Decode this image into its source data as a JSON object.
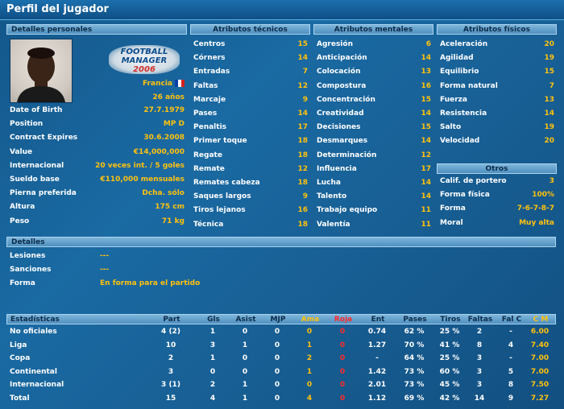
{
  "title": "Perfil del jugador",
  "personal": {
    "header": "Detalles personales",
    "logo_line1": "FOOTBALL",
    "logo_line2": "MANAGER",
    "logo_year": "2006",
    "nationality": "Francia",
    "age": "26 años",
    "rows": [
      {
        "label": "Date of Birth",
        "value": "27.7.1979"
      },
      {
        "label": "Position",
        "value": "MP D"
      },
      {
        "label": "Contract Expires",
        "value": "30.6.2008"
      },
      {
        "label": "Value",
        "value": "€14,000,000"
      },
      {
        "label": "Internacional",
        "value": "20 veces int. / 5 goles"
      },
      {
        "label": "Sueldo base",
        "value": "€110,000 mensuales"
      },
      {
        "label": "Pierna preferida",
        "value": "Dcha. sólo"
      },
      {
        "label": "Altura",
        "value": "175 cm"
      },
      {
        "label": "Peso",
        "value": "71 kg"
      }
    ]
  },
  "tecnicos": {
    "header": "Atributos técnicos",
    "rows": [
      {
        "label": "Centros",
        "value": "15"
      },
      {
        "label": "Córners",
        "value": "14"
      },
      {
        "label": "Entradas",
        "value": "7"
      },
      {
        "label": "Faltas",
        "value": "12"
      },
      {
        "label": "Marcaje",
        "value": "9"
      },
      {
        "label": "Pases",
        "value": "14"
      },
      {
        "label": "Penaltis",
        "value": "17"
      },
      {
        "label": "Primer toque",
        "value": "18"
      },
      {
        "label": "Regate",
        "value": "18"
      },
      {
        "label": "Remate",
        "value": "12"
      },
      {
        "label": "Remates cabeza",
        "value": "18"
      },
      {
        "label": "Saques largos",
        "value": "9"
      },
      {
        "label": "Tiros lejanos",
        "value": "16"
      },
      {
        "label": "Técnica",
        "value": "18"
      }
    ]
  },
  "mentales": {
    "header": "Atributos mentales",
    "rows": [
      {
        "label": "Agresión",
        "value": "6"
      },
      {
        "label": "Anticipación",
        "value": "14"
      },
      {
        "label": "Colocación",
        "value": "13"
      },
      {
        "label": "Compostura",
        "value": "16"
      },
      {
        "label": "Concentración",
        "value": "15"
      },
      {
        "label": "Creatividad",
        "value": "14"
      },
      {
        "label": "Decisiones",
        "value": "15"
      },
      {
        "label": "Desmarques",
        "value": "14"
      },
      {
        "label": "Determinación",
        "value": "12"
      },
      {
        "label": "Influencia",
        "value": "17"
      },
      {
        "label": "Lucha",
        "value": "14"
      },
      {
        "label": "Talento",
        "value": "14"
      },
      {
        "label": "Trabajo equipo",
        "value": "11"
      },
      {
        "label": "Valentía",
        "value": "11"
      }
    ]
  },
  "fisicos": {
    "header": "Atributos físicos",
    "rows": [
      {
        "label": "Aceleración",
        "value": "20"
      },
      {
        "label": "Agilidad",
        "value": "19"
      },
      {
        "label": "Equilibrio",
        "value": "15"
      },
      {
        "label": "Forma natural",
        "value": "7"
      },
      {
        "label": "Fuerza",
        "value": "13"
      },
      {
        "label": "Resistencia",
        "value": "14"
      },
      {
        "label": "Salto",
        "value": "19"
      },
      {
        "label": "Velocidad",
        "value": "20"
      }
    ]
  },
  "otros": {
    "header": "Otros",
    "rows": [
      {
        "label": "Calif. de portero",
        "value": "3"
      },
      {
        "label": "Forma física",
        "value": "100%"
      },
      {
        "label": "Forma",
        "value": "7-6-7-8-7"
      },
      {
        "label": "Moral",
        "value": "Muy alta"
      }
    ]
  },
  "detalles": {
    "header": "Detalles",
    "rows": [
      {
        "label": "Lesiones",
        "value": "---"
      },
      {
        "label": "Sanciones",
        "value": "---"
      },
      {
        "label": "Forma",
        "value": "En forma para el partido"
      }
    ]
  },
  "stats": {
    "header": [
      "Estadísticas",
      "Part",
      "Gls",
      "Asist",
      "MJP",
      "Ama",
      "Roja",
      "Ent",
      "Pases",
      "Tiros",
      "Faltas",
      "Fal C",
      "C M"
    ],
    "rows": [
      [
        "No oficiales",
        "4 (2)",
        "1",
        "0",
        "0",
        "0",
        "0",
        "0.74",
        "62 %",
        "25 %",
        "2",
        "-",
        "6.00"
      ],
      [
        "Liga",
        "10",
        "3",
        "1",
        "0",
        "1",
        "0",
        "1.27",
        "70 %",
        "41 %",
        "8",
        "4",
        "7.40"
      ],
      [
        "Copa",
        "2",
        "1",
        "0",
        "0",
        "2",
        "0",
        "-",
        "64 %",
        "25 %",
        "3",
        "-",
        "7.00"
      ],
      [
        "Continental",
        "3",
        "0",
        "0",
        "0",
        "1",
        "0",
        "1.42",
        "73 %",
        "60 %",
        "3",
        "5",
        "7.00"
      ],
      [
        "Internacional",
        "3 (1)",
        "2",
        "1",
        "0",
        "0",
        "0",
        "2.01",
        "73 %",
        "45 %",
        "3",
        "8",
        "7.50"
      ],
      [
        "Total",
        "15",
        "4",
        "1",
        "0",
        "4",
        "0",
        "1.12",
        "69 %",
        "42 %",
        "14",
        "9",
        "7.27"
      ]
    ]
  }
}
